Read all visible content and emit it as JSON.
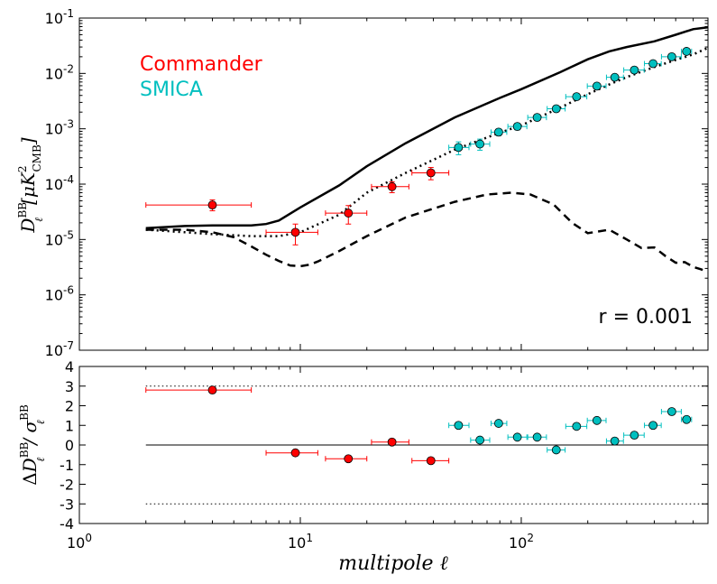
{
  "chart_data": [
    {
      "type": "line",
      "panel": "top",
      "xscale": "log",
      "yscale": "log",
      "xlim": [
        1,
        700
      ],
      "ylim": [
        1e-07,
        0.1
      ],
      "ylabel_main": "D",
      "ylabel_sup": "BB",
      "ylabel_sub": "ℓ",
      "ylabel_unit_open": "[μK",
      "ylabel_unit_sup": "2",
      "ylabel_unit_sub": "CMB",
      "ylabel_unit_close": "]",
      "x_ticks": [
        {
          "v": 1,
          "base": "10",
          "exp": "0"
        },
        {
          "v": 10,
          "base": "10",
          "exp": "1"
        },
        {
          "v": 100,
          "base": "10",
          "exp": "2"
        }
      ],
      "y_ticks": [
        {
          "v": 1e-07,
          "base": "10",
          "exp": "-7"
        },
        {
          "v": 1e-06,
          "base": "10",
          "exp": "-6"
        },
        {
          "v": 1e-05,
          "base": "10",
          "exp": "-5"
        },
        {
          "v": 0.0001,
          "base": "10",
          "exp": "-4"
        },
        {
          "v": 0.001,
          "base": "10",
          "exp": "-3"
        },
        {
          "v": 0.01,
          "base": "10",
          "exp": "-2"
        },
        {
          "v": 0.1,
          "base": "10",
          "exp": "-1"
        }
      ],
      "legend": [
        {
          "label": "Commander",
          "color": "#ff0000"
        },
        {
          "label": "SMICA",
          "color": "#00bfbf"
        }
      ],
      "annotation": "r = 0.001",
      "curves": [
        {
          "name": "total",
          "style": "solid",
          "color": "#000000",
          "x": [
            2,
            3,
            4,
            5,
            6,
            7,
            8,
            10,
            15,
            20,
            30,
            50,
            80,
            100,
            150,
            200,
            250,
            300,
            400,
            500,
            600,
            700
          ],
          "y": [
            1.6e-05,
            1.75e-05,
            1.8e-05,
            1.8e-05,
            1.8e-05,
            1.9e-05,
            2.2e-05,
            3.8e-05,
            9.5e-05,
            0.00021,
            0.00055,
            0.0016,
            0.0036,
            0.0052,
            0.0105,
            0.018,
            0.025,
            0.03,
            0.038,
            0.05,
            0.063,
            0.068
          ]
        },
        {
          "name": "lensing",
          "style": "dotted",
          "color": "#000000",
          "x": [
            2,
            3,
            4,
            6,
            8,
            10,
            15,
            20,
            30,
            50,
            80,
            100,
            150,
            200,
            250,
            300,
            400,
            500,
            600,
            700
          ],
          "y": [
            1.5e-05,
            1.35e-05,
            1.25e-05,
            1.15e-05,
            1.15e-05,
            1.35e-05,
            2.8e-05,
            7e-05,
            0.00016,
            0.00042,
            0.00085,
            0.00115,
            0.0024,
            0.0042,
            0.0063,
            0.0086,
            0.013,
            0.0175,
            0.022,
            0.029
          ]
        },
        {
          "name": "tensor",
          "style": "dashed",
          "color": "#000000",
          "x": [
            2,
            3,
            4,
            5,
            6,
            7,
            8,
            9,
            10,
            11,
            12,
            15,
            20,
            30,
            50,
            70,
            90,
            110,
            140,
            170,
            200,
            250,
            300,
            350,
            400,
            450,
            500,
            550,
            600,
            650,
            700
          ],
          "y": [
            1.5e-05,
            1.5e-05,
            1.35e-05,
            1.1e-05,
            7.5e-06,
            5.3e-06,
            4.1e-06,
            3.4e-06,
            3.3e-06,
            3.5e-06,
            4e-06,
            6.2e-06,
            1.15e-05,
            2.5e-05,
            4.8e-05,
            6.5e-05,
            7e-05,
            6.5e-05,
            4.3e-05,
            2e-05,
            1.3e-05,
            1.5e-05,
            1e-05,
            7e-06,
            7.2e-06,
            5e-06,
            3.8e-06,
            3.9e-06,
            3.2e-06,
            2.9e-06,
            2.6e-06
          ]
        }
      ],
      "series": [
        {
          "name": "Commander",
          "color": "#ff0000",
          "points": [
            {
              "x": 4.0,
              "xlo": 2,
              "xhi": 6,
              "y": 4.2e-05,
              "ylo": 3.3e-05,
              "yhi": 5.2e-05
            },
            {
              "x": 9.5,
              "xlo": 7,
              "xhi": 12,
              "y": 1.35e-05,
              "ylo": 8e-06,
              "yhi": 1.9e-05
            },
            {
              "x": 16.5,
              "xlo": 13,
              "xhi": 20,
              "y": 3e-05,
              "ylo": 1.9e-05,
              "yhi": 4.1e-05
            },
            {
              "x": 26,
              "xlo": 21,
              "xhi": 31,
              "y": 9e-05,
              "ylo": 7e-05,
              "yhi": 0.00011
            },
            {
              "x": 39,
              "xlo": 32,
              "xhi": 47,
              "y": 0.00016,
              "ylo": 0.00012,
              "yhi": 0.0002
            }
          ]
        },
        {
          "name": "SMICA",
          "color": "#00bfbf",
          "points": [
            {
              "x": 52,
              "xlo": 47,
              "xhi": 58,
              "y": 0.00046,
              "ylo": 0.00034,
              "yhi": 0.00058
            },
            {
              "x": 65,
              "xlo": 59,
              "xhi": 72,
              "y": 0.00053,
              "ylo": 0.00041,
              "yhi": 0.00065
            },
            {
              "x": 79,
              "xlo": 73,
              "xhi": 86,
              "y": 0.00087,
              "ylo": 0.00075,
              "yhi": 0.00099
            },
            {
              "x": 96,
              "xlo": 87,
              "xhi": 106,
              "y": 0.0011,
              "ylo": 0.00095,
              "yhi": 0.00125
            },
            {
              "x": 118,
              "xlo": 107,
              "xhi": 130,
              "y": 0.0016,
              "ylo": 0.00145,
              "yhi": 0.00175
            },
            {
              "x": 144,
              "xlo": 131,
              "xhi": 158,
              "y": 0.0023,
              "ylo": 0.0021,
              "yhi": 0.0025
            },
            {
              "x": 178,
              "xlo": 159,
              "xhi": 198,
              "y": 0.0038,
              "ylo": 0.0035,
              "yhi": 0.0041
            },
            {
              "x": 220,
              "xlo": 199,
              "xhi": 242,
              "y": 0.0059,
              "ylo": 0.0055,
              "yhi": 0.0063
            },
            {
              "x": 265,
              "xlo": 243,
              "xhi": 290,
              "y": 0.0085,
              "ylo": 0.008,
              "yhi": 0.009
            },
            {
              "x": 325,
              "xlo": 291,
              "xhi": 360,
              "y": 0.0115,
              "ylo": 0.0108,
              "yhi": 0.0122
            },
            {
              "x": 395,
              "xlo": 361,
              "xhi": 430,
              "y": 0.015,
              "ylo": 0.0142,
              "yhi": 0.0158
            },
            {
              "x": 480,
              "xlo": 431,
              "xhi": 530,
              "y": 0.02,
              "ylo": 0.019,
              "yhi": 0.021
            },
            {
              "x": 560,
              "xlo": 531,
              "xhi": 590,
              "y": 0.025,
              "ylo": 0.0238,
              "yhi": 0.0262
            }
          ]
        }
      ]
    },
    {
      "type": "scatter",
      "panel": "bottom",
      "xscale": "log",
      "xlim": [
        1,
        700
      ],
      "ylim": [
        -4,
        4
      ],
      "xlabel": "multipole ℓ",
      "ylabel_delta": "Δ",
      "ylabel_main": "D",
      "ylabel_sup": "BB",
      "ylabel_sub": "ℓ",
      "ylabel_sigma": "/ σ",
      "y_ticks": [
        "-4",
        "-3",
        "-2",
        "-1",
        "0",
        "1",
        "2",
        "3",
        "4"
      ],
      "hlines": [
        {
          "y": 0,
          "style": "solid",
          "xmin": 2
        },
        {
          "y": 3,
          "style": "dotted",
          "xmin": 2
        },
        {
          "y": -3,
          "style": "dotted",
          "xmin": 2
        }
      ],
      "series": [
        {
          "name": "Commander",
          "color": "#ff0000",
          "points": [
            {
              "x": 4.0,
              "xlo": 2,
              "xhi": 6,
              "y": 2.8
            },
            {
              "x": 9.5,
              "xlo": 7,
              "xhi": 12,
              "y": -0.4
            },
            {
              "x": 16.5,
              "xlo": 13,
              "xhi": 20,
              "y": -0.7
            },
            {
              "x": 26,
              "xlo": 21,
              "xhi": 31,
              "y": 0.15
            },
            {
              "x": 39,
              "xlo": 32,
              "xhi": 47,
              "y": -0.8
            }
          ]
        },
        {
          "name": "SMICA",
          "color": "#00bfbf",
          "points": [
            {
              "x": 52,
              "xlo": 47,
              "xhi": 58,
              "y": 1.0
            },
            {
              "x": 65,
              "xlo": 59,
              "xhi": 72,
              "y": 0.25
            },
            {
              "x": 79,
              "xlo": 73,
              "xhi": 86,
              "y": 1.1
            },
            {
              "x": 96,
              "xlo": 87,
              "xhi": 106,
              "y": 0.4
            },
            {
              "x": 118,
              "xlo": 107,
              "xhi": 130,
              "y": 0.4
            },
            {
              "x": 144,
              "xlo": 131,
              "xhi": 158,
              "y": -0.25
            },
            {
              "x": 178,
              "xlo": 159,
              "xhi": 198,
              "y": 0.95
            },
            {
              "x": 220,
              "xlo": 199,
              "xhi": 242,
              "y": 1.25
            },
            {
              "x": 265,
              "xlo": 243,
              "xhi": 290,
              "y": 0.2
            },
            {
              "x": 325,
              "xlo": 291,
              "xhi": 360,
              "y": 0.5
            },
            {
              "x": 395,
              "xlo": 361,
              "xhi": 430,
              "y": 1.0
            },
            {
              "x": 480,
              "xlo": 431,
              "xhi": 530,
              "y": 1.7
            },
            {
              "x": 560,
              "xlo": 531,
              "xhi": 590,
              "y": 1.3
            }
          ]
        }
      ]
    }
  ]
}
